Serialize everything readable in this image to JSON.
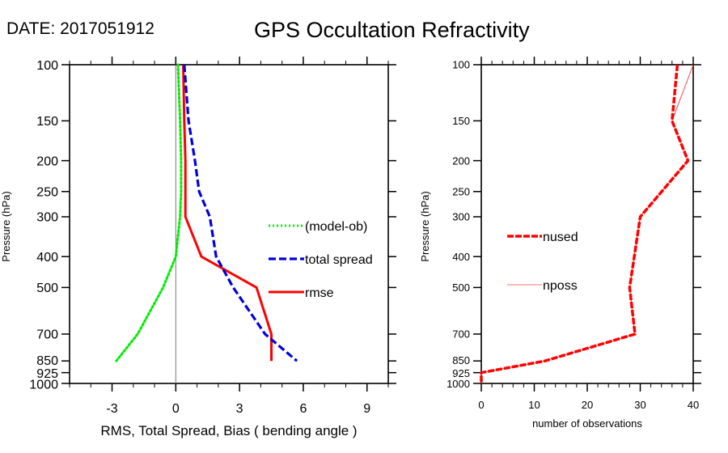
{
  "header": {
    "date_label": "DATE: 2017051912",
    "title": "GPS Occultation Refractivity"
  },
  "chart_data": [
    {
      "type": "line",
      "title": "GPS Occultation Refractivity",
      "xlabel": "RMS, Total Spread, Bias ( bending angle )",
      "ylabel": "Pressure (hPa)",
      "xlim": [
        -5,
        10
      ],
      "ylim": [
        1000,
        100
      ],
      "yscale": "log",
      "xticks": [
        -3,
        0,
        3,
        6,
        9
      ],
      "xtick_labels": [
        "-3",
        "0",
        "3",
        "6",
        "9"
      ],
      "yticks": [
        100,
        150,
        200,
        250,
        300,
        400,
        500,
        700,
        850,
        925,
        1000
      ],
      "ytick_labels": [
        "100",
        "150",
        "200",
        "250",
        "300",
        "400",
        "500",
        "700",
        "850",
        "925",
        "1000"
      ],
      "reference_line_x": 0,
      "legend_placement": "right-middle",
      "series": [
        {
          "name": "(model-ob)",
          "color": "#00ee00",
          "style": "dotted",
          "pressure": [
            100,
            150,
            200,
            250,
            300,
            400,
            500,
            700,
            850
          ],
          "values": [
            0.1,
            0.2,
            0.25,
            0.25,
            0.2,
            0.0,
            -0.6,
            -1.8,
            -2.8
          ]
        },
        {
          "name": "total spread",
          "color": "#0000dd",
          "style": "dashed",
          "pressure": [
            100,
            150,
            200,
            250,
            300,
            400,
            500,
            700,
            850
          ],
          "values": [
            0.4,
            0.6,
            0.9,
            1.1,
            1.6,
            1.9,
            2.7,
            4.2,
            5.7
          ]
        },
        {
          "name": "rmse",
          "color": "#ff0000",
          "style": "solid",
          "pressure": [
            100,
            150,
            200,
            250,
            300,
            400,
            500,
            700,
            850
          ],
          "values": [
            0.35,
            0.4,
            0.45,
            0.45,
            0.45,
            1.2,
            3.8,
            4.5,
            4.5
          ]
        }
      ]
    },
    {
      "type": "line",
      "title": "",
      "xlabel": "number of observations",
      "ylabel": "Pressure (hPa)",
      "xlim": [
        0,
        40
      ],
      "ylim": [
        1000,
        100
      ],
      "yscale": "log",
      "xticks": [
        0,
        10,
        20,
        30,
        40
      ],
      "xtick_labels": [
        "0",
        "10",
        "20",
        "30",
        "40"
      ],
      "yticks": [
        100,
        150,
        200,
        250,
        300,
        400,
        500,
        700,
        850,
        925,
        1000
      ],
      "ytick_labels": [
        "100",
        "150",
        "200",
        "250",
        "300",
        "400",
        "500",
        "700",
        "850",
        "925",
        "1000"
      ],
      "legend_placement": "left-middle",
      "series": [
        {
          "name": "nused",
          "color": "#ff0000",
          "style": "dashed-thick",
          "pressure": [
            100,
            150,
            200,
            300,
            500,
            700,
            850,
            925,
            1000
          ],
          "values": [
            37,
            36,
            39,
            30,
            28,
            29,
            12,
            0,
            0
          ]
        },
        {
          "name": "nposs",
          "color": "#ff4444",
          "style": "thin",
          "pressure": [
            100,
            150,
            200,
            300,
            500,
            700,
            850,
            925,
            1000
          ],
          "values": [
            40,
            36,
            39,
            30,
            28,
            29,
            12,
            0,
            0
          ]
        }
      ]
    }
  ]
}
